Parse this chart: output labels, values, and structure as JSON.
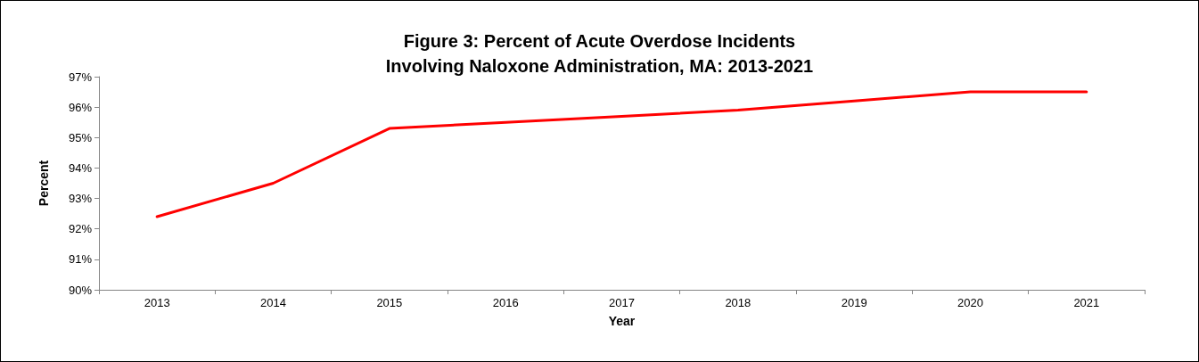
{
  "chart_data": {
    "type": "line",
    "title": "Figure 3: Percent of Acute Overdose Incidents\nInvolving Naloxone Administration, MA: 2013-2021",
    "xlabel": "Year",
    "ylabel": "Percent",
    "categories": [
      "2013",
      "2014",
      "2015",
      "2016",
      "2017",
      "2018",
      "2019",
      "2020",
      "2021"
    ],
    "series": [
      {
        "color": "#ff0000",
        "values": [
          92.4,
          93.5,
          95.3,
          95.5,
          95.7,
          95.9,
          96.2,
          96.5,
          96.5
        ]
      }
    ],
    "ylim": [
      90,
      97
    ],
    "yticks": [
      {
        "value": 90,
        "label": "90%"
      },
      {
        "value": 91,
        "label": "91%"
      },
      {
        "value": 92,
        "label": "92%"
      },
      {
        "value": 93,
        "label": "93%"
      },
      {
        "value": 94,
        "label": "94%"
      },
      {
        "value": 95,
        "label": "95%"
      },
      {
        "value": 96,
        "label": "96%"
      },
      {
        "value": 97,
        "label": "97%"
      }
    ],
    "grid": false,
    "marker": "none",
    "line_style": "solid"
  }
}
